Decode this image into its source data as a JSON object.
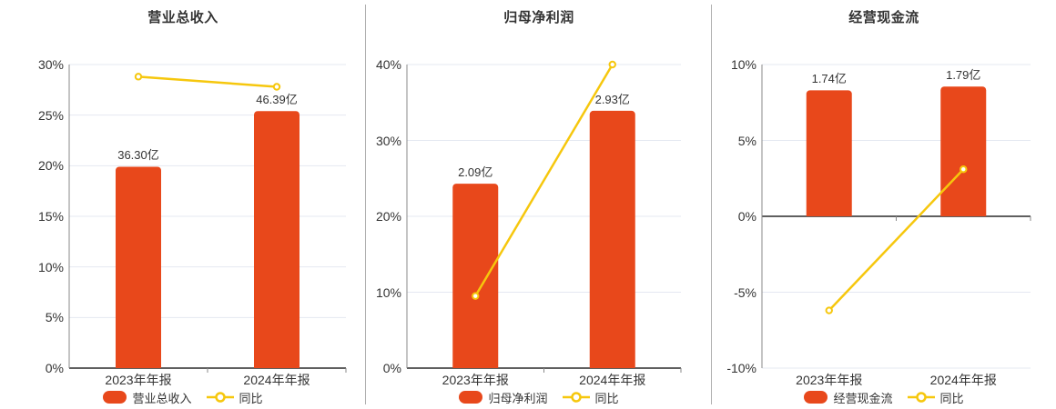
{
  "colors": {
    "bar": "#E8481B",
    "line": "#F6C70D",
    "grid": "#E4E8F1",
    "zero_axis": "#5F5F5F",
    "axis_line": "#888888",
    "divider": "#B0B0B0",
    "text": "#333333",
    "bg": "#FFFFFF",
    "marker_fill": "#FFFFFF"
  },
  "chart_data": [
    {
      "type": "bar",
      "title": "营业总收入",
      "categories": [
        "2023年年报",
        "2024年年报"
      ],
      "series": [
        {
          "name": "营业总收入",
          "kind": "bar",
          "unit": "亿",
          "values": [
            36.3,
            46.39
          ],
          "value_labels": [
            "36.30亿",
            "46.39亿"
          ],
          "display_axis_pct": [
            19.9,
            25.4
          ]
        },
        {
          "name": "同比",
          "kind": "line",
          "unit": "%",
          "values": [
            28.8,
            27.8
          ]
        }
      ],
      "ylim": [
        0,
        30
      ],
      "yticks": [
        [
          0,
          "0%"
        ],
        [
          5,
          "5%"
        ],
        [
          10,
          "10%"
        ],
        [
          15,
          "15%"
        ],
        [
          20,
          "20%"
        ],
        [
          25,
          "25%"
        ],
        [
          30,
          "30%"
        ]
      ],
      "legend": [
        "营业总收入",
        "同比"
      ],
      "legend_position": "bottom",
      "grid": true
    },
    {
      "type": "bar",
      "title": "归母净利润",
      "categories": [
        "2023年年报",
        "2024年年报"
      ],
      "series": [
        {
          "name": "归母净利润",
          "kind": "bar",
          "unit": "亿",
          "values": [
            2.09,
            2.93
          ],
          "value_labels": [
            "2.09亿",
            "2.93亿"
          ],
          "display_axis_pct": [
            24.3,
            33.9
          ]
        },
        {
          "name": "同比",
          "kind": "line",
          "unit": "%",
          "values": [
            9.5,
            40.0
          ]
        }
      ],
      "ylim": [
        0,
        40
      ],
      "yticks": [
        [
          0,
          "0%"
        ],
        [
          10,
          "10%"
        ],
        [
          20,
          "20%"
        ],
        [
          30,
          "30%"
        ],
        [
          40,
          "40%"
        ]
      ],
      "legend": [
        "归母净利润",
        "同比"
      ],
      "legend_position": "bottom",
      "grid": true
    },
    {
      "type": "bar",
      "title": "经营现金流",
      "categories": [
        "2023年年报",
        "2024年年报"
      ],
      "series": [
        {
          "name": "经营现金流",
          "kind": "bar",
          "unit": "亿",
          "values": [
            1.74,
            1.79
          ],
          "value_labels": [
            "1.74亿",
            "1.79亿"
          ],
          "display_axis_pct": [
            8.3,
            8.55
          ]
        },
        {
          "name": "同比",
          "kind": "line",
          "unit": "%",
          "values": [
            -6.2,
            3.1
          ]
        }
      ],
      "ylim": [
        -10,
        10
      ],
      "yticks": [
        [
          -10,
          "-10%"
        ],
        [
          -5,
          "-5%"
        ],
        [
          0,
          "0%"
        ],
        [
          5,
          "5%"
        ],
        [
          10,
          "10%"
        ]
      ],
      "legend": [
        "经营现金流",
        "同比"
      ],
      "legend_position": "bottom",
      "grid": true
    }
  ]
}
